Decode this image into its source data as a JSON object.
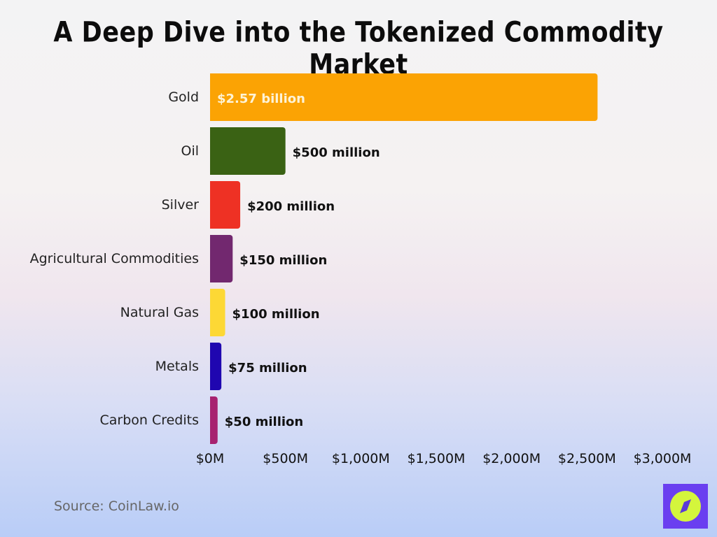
{
  "title": "A Deep Dive into the Tokenized Commodity Market",
  "source": "Source: CoinLaw.io",
  "logo_icon": "compass-icon",
  "chart_data": {
    "type": "bar",
    "orientation": "horizontal",
    "title": "A Deep Dive into the Tokenized Commodity Market",
    "categories": [
      "Gold",
      "Oil",
      "Silver",
      "Agricultural Commodities",
      "Natural Gas",
      "Metals",
      "Carbon Credits"
    ],
    "values": [
      2570,
      500,
      200,
      150,
      100,
      75,
      50
    ],
    "unit": "million USD",
    "data_labels": [
      "$2.57 billion",
      "$500 million",
      "$200 million",
      "$150 million",
      "$100 million",
      "$75 million",
      "$50 million"
    ],
    "colors": [
      "#FBA304",
      "#3A6214",
      "#EE3124",
      "#72286F",
      "#FDD835",
      "#1F06B0",
      "#A72270"
    ],
    "xlim": [
      0,
      3000
    ],
    "xticks": [
      0,
      500,
      1000,
      1500,
      2000,
      2500,
      3000
    ],
    "xtick_labels": [
      "$0M",
      "$500M",
      "$1,000M",
      "$1,500M",
      "$2,000M",
      "$2,500M",
      "$3,000M"
    ],
    "grid": false,
    "legend": "none"
  }
}
